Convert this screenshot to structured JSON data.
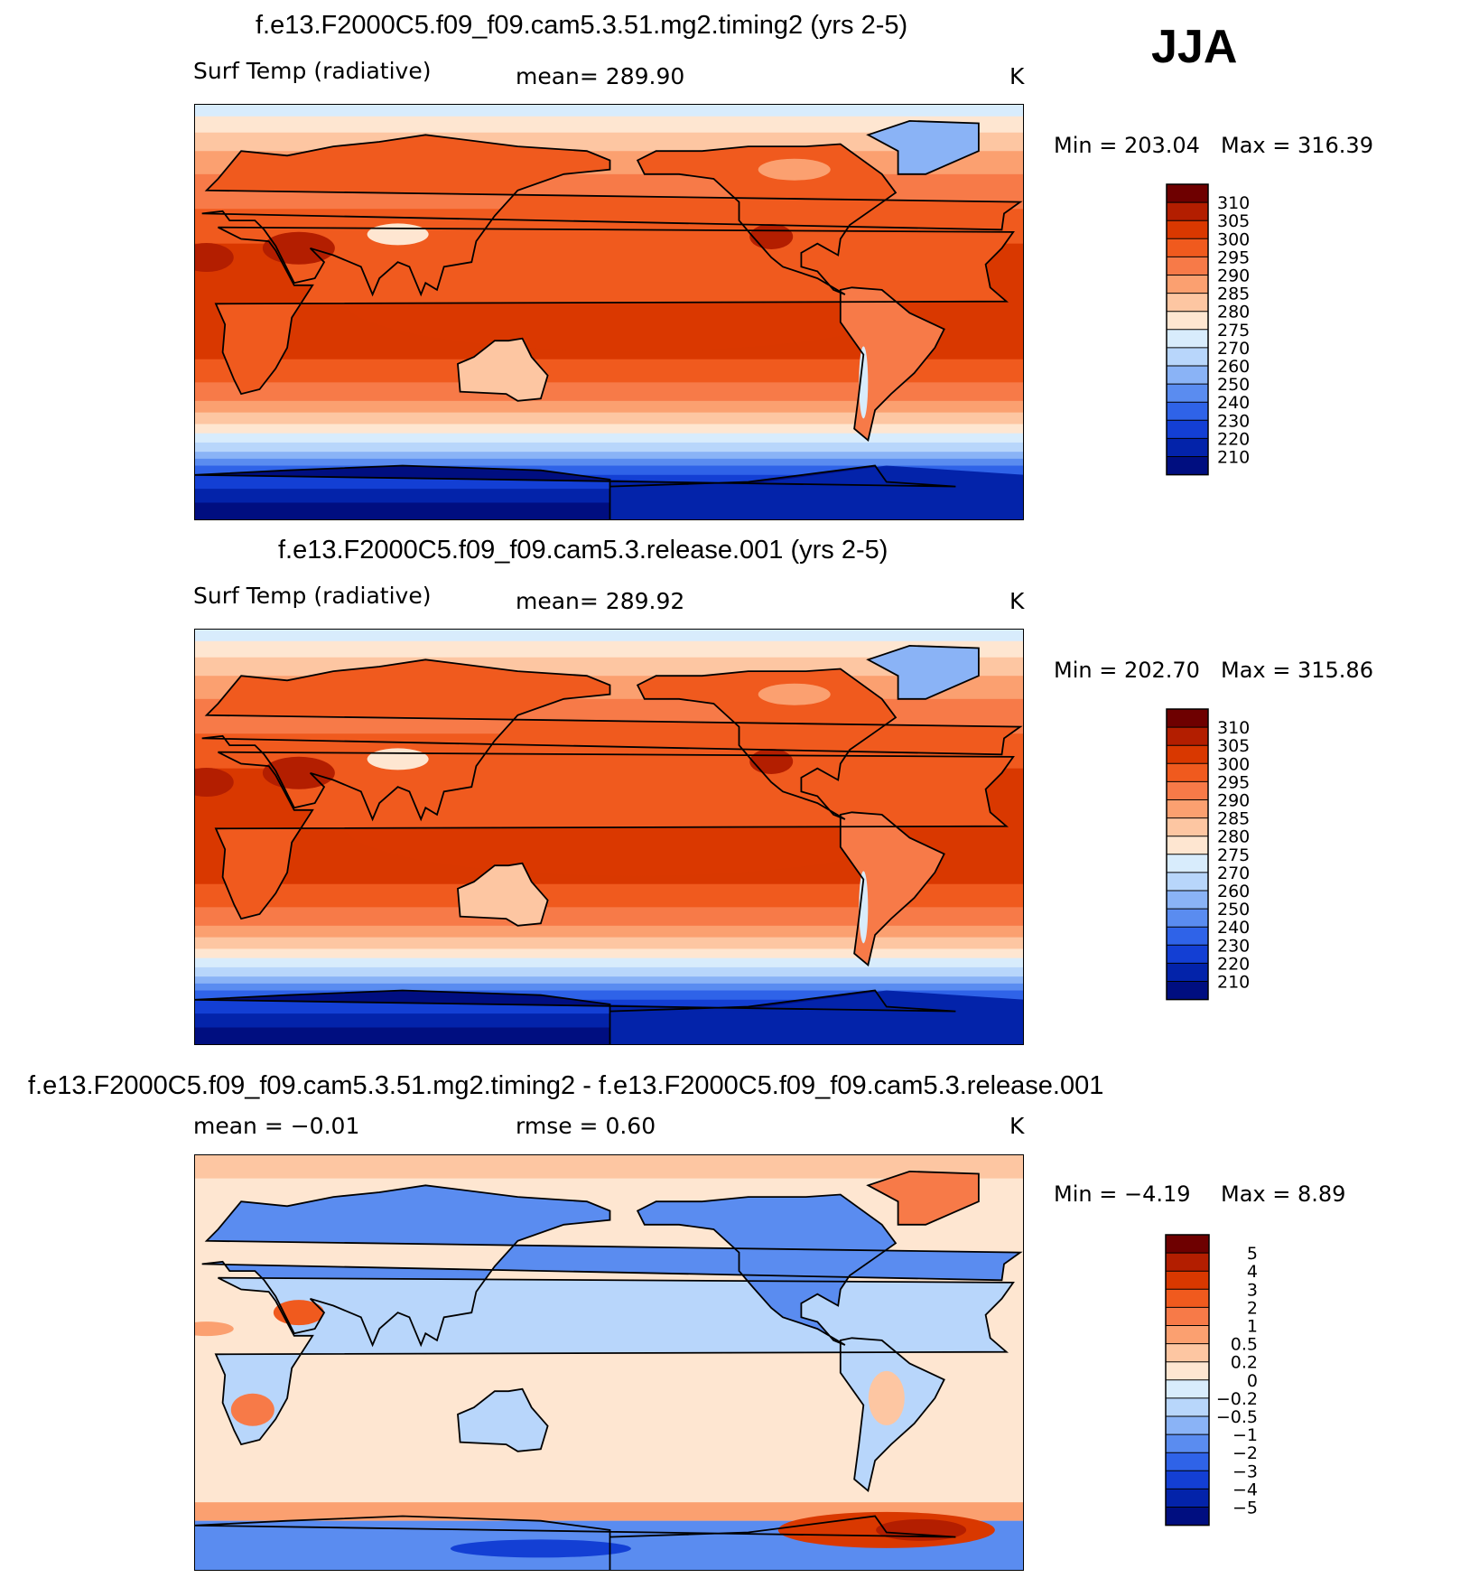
{
  "season": "JJA",
  "chart_data": [
    {
      "type": "heatmap",
      "title": "f.e13.F2000C5.f09_f09.cam5.3.51.mg2.timing2 (yrs 2-5)",
      "left_label": "Surf Temp (radiative)",
      "center_label": "mean=  289.90",
      "units": "K",
      "min_label": "Min  =  203.04",
      "max_label": "Max  =  316.39",
      "levels": [
        "310",
        "305",
        "300",
        "295",
        "290",
        "285",
        "280",
        "275",
        "270",
        "260",
        "250",
        "240",
        "230",
        "220",
        "210"
      ],
      "colors": [
        "#6e0000",
        "#b31e00",
        "#d93800",
        "#f05a1e",
        "#f77a48",
        "#fba070",
        "#fdc6a2",
        "#fee6d1",
        "#d8ecfc",
        "#b8d6fb",
        "#8ab3f6",
        "#5a8cf0",
        "#2f63e8",
        "#133fd4",
        "#0323aa",
        "#000e80"
      ]
    },
    {
      "type": "heatmap",
      "title": "f.e13.F2000C5.f09_f09.cam5.3.release.001 (yrs 2-5)",
      "left_label": "Surf Temp (radiative)",
      "center_label": "mean=  289.92",
      "units": "K",
      "min_label": "Min  =  202.70",
      "max_label": "Max  =  315.86",
      "levels": [
        "310",
        "305",
        "300",
        "295",
        "290",
        "285",
        "280",
        "275",
        "270",
        "260",
        "250",
        "240",
        "230",
        "220",
        "210"
      ],
      "colors": [
        "#6e0000",
        "#b31e00",
        "#d93800",
        "#f05a1e",
        "#f77a48",
        "#fba070",
        "#fdc6a2",
        "#fee6d1",
        "#d8ecfc",
        "#b8d6fb",
        "#8ab3f6",
        "#5a8cf0",
        "#2f63e8",
        "#133fd4",
        "#0323aa",
        "#000e80"
      ]
    },
    {
      "type": "heatmap",
      "title": "f.e13.F2000C5.f09_f09.cam5.3.51.mg2.timing2 - f.e13.F2000C5.f09_f09.cam5.3.release.001",
      "left_label": "mean  =    −0.01",
      "center_label": "rmse  =     0.60",
      "units": "K",
      "min_label": "Min  =    −4.19",
      "max_label": "Max  =     8.89",
      "levels": [
        "5",
        "4",
        "3",
        "2",
        "1",
        "0.5",
        "0.2",
        "0",
        "−0.2",
        "−0.5",
        "−1",
        "−2",
        "−3",
        "−4",
        "−5"
      ],
      "colors": [
        "#6e0000",
        "#b31e00",
        "#d93800",
        "#f05a1e",
        "#f77a48",
        "#fba070",
        "#fdc6a2",
        "#fee6d1",
        "#d8ecfc",
        "#b8d6fb",
        "#8ab3f6",
        "#5a8cf0",
        "#2f63e8",
        "#133fd4",
        "#0323aa",
        "#000e80"
      ]
    }
  ]
}
